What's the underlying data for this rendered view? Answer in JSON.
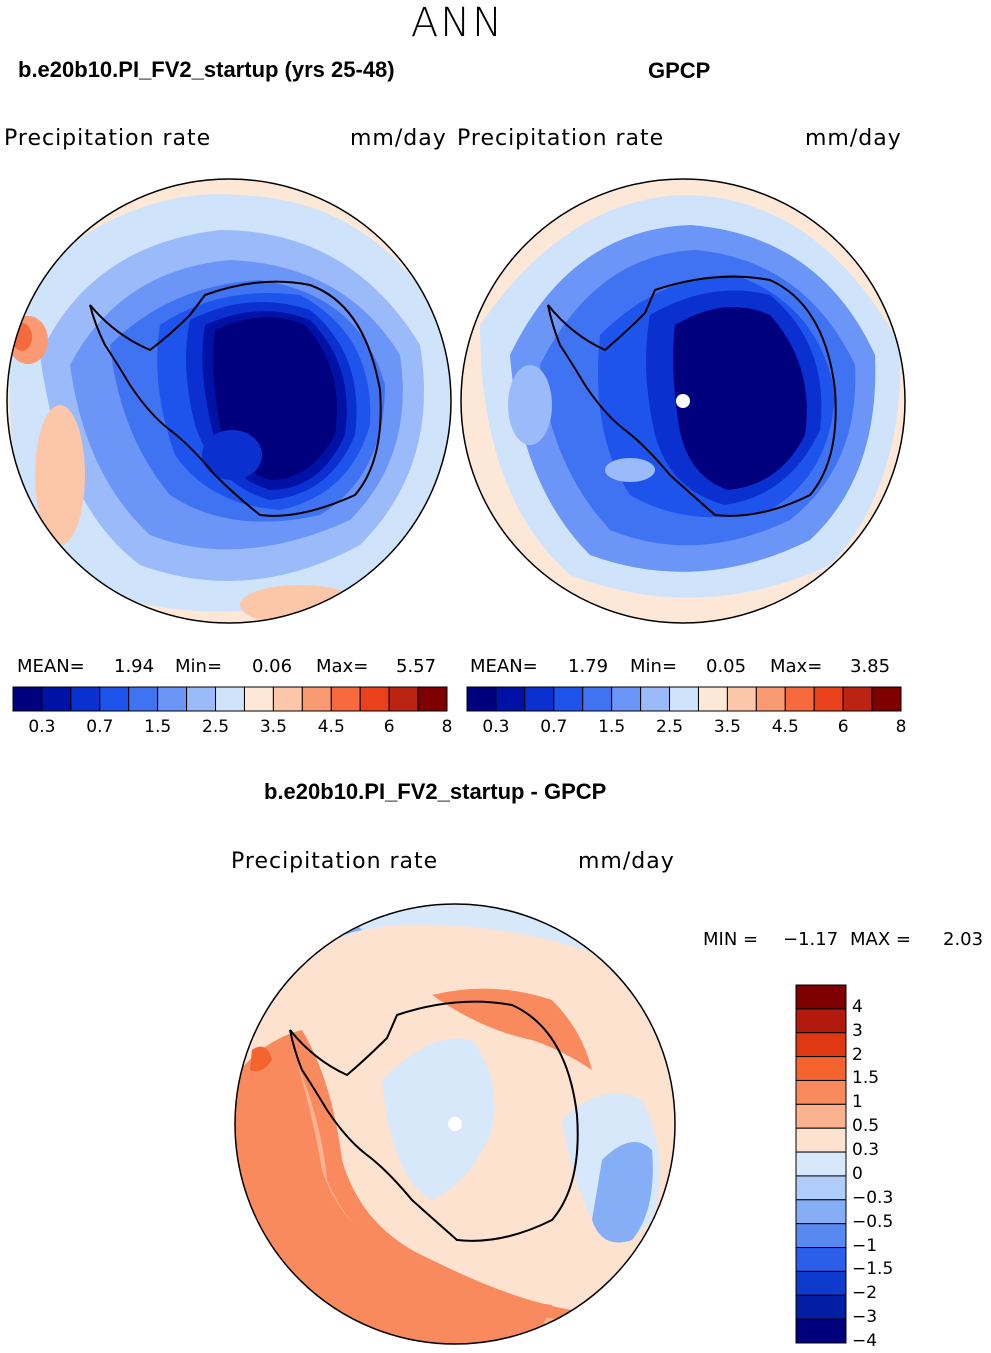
{
  "page": {
    "season": "ANN",
    "panels": [
      {
        "title": "b.e20b10.PI_FV2_startup (yrs 25-48)",
        "variable": "Precipitation rate",
        "units": "mm/day",
        "stats": {
          "mean_label": "MEAN=",
          "mean": "1.94",
          "min_label": "Min=",
          "min": "0.06",
          "max_label": "Max=",
          "max": "5.57"
        }
      },
      {
        "title": "GPCP",
        "variable": "Precipitation rate",
        "units": "mm/day",
        "stats": {
          "mean_label": "MEAN=",
          "mean": "1.79",
          "min_label": "Min=",
          "min": "0.05",
          "max_label": "Max=",
          "max": "3.85"
        }
      }
    ],
    "diff": {
      "title": "b.e20b10.PI_FV2_startup - GPCP",
      "variable": "Precipitation rate",
      "units": "mm/day",
      "min_label": "MIN =",
      "min": "−1.17",
      "max_label": "MAX =",
      "max": "2.03"
    }
  },
  "colorbars": {
    "abs": {
      "colors": [
        "#00007f",
        "#0012a5",
        "#0a31d0",
        "#1f54ec",
        "#4073f2",
        "#6b95f6",
        "#9bbaf9",
        "#cfe3fb",
        "#fde8d8",
        "#fcc6a8",
        "#f99a73",
        "#f66a3e",
        "#e8411c",
        "#bb2412",
        "#7f0000"
      ],
      "ticks": [
        "0.3",
        "0.7",
        "1.5",
        "2.5",
        "3.5",
        "4.5",
        "6",
        "8"
      ]
    },
    "diff": {
      "colors": [
        "#7f0000",
        "#b21a0d",
        "#e03812",
        "#f5632f",
        "#f98a5e",
        "#fbb28e",
        "#fde2cf",
        "#d8e8fb",
        "#b0cdf9",
        "#86aef6",
        "#5789f1",
        "#2b5ee9",
        "#0e3bce",
        "#021ea5",
        "#00007f"
      ],
      "labels": [
        "4",
        "3",
        "2",
        "1.5",
        "1",
        "0.5",
        "0.3",
        "0",
        "−0.3",
        "−0.5",
        "−1",
        "−1.5",
        "−2",
        "−3",
        "−4"
      ]
    }
  }
}
